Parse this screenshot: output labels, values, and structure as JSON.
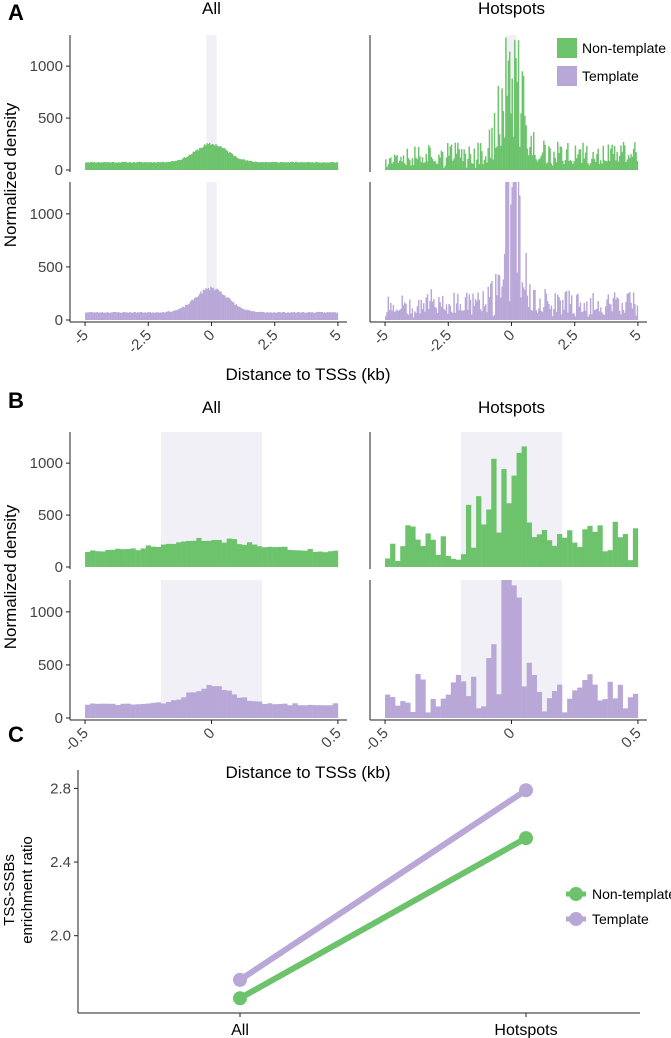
{
  "colors": {
    "non_template": "#6cc36c",
    "template": "#b9a7d8",
    "shade": "#e6e6f0",
    "axis": "#222222"
  },
  "chart_data": [
    {
      "panel_label": "A",
      "type": "histogram",
      "xlabel": "Distance to TSSs (kb)",
      "ylabel": "Normalized density",
      "facets": [
        "All",
        "Hotspots"
      ],
      "xticks": [
        "-5",
        "-2.5",
        "0",
        "2.5",
        "5"
      ],
      "yticks": [
        "0",
        "500",
        "1000"
      ],
      "xlim": [
        -5.2,
        5.2
      ],
      "ylim": [
        0,
        1300
      ],
      "highlight_region": [
        -0.2,
        0.2
      ],
      "legend": {
        "position": "top-right",
        "entries": [
          "Non-template",
          "Template"
        ]
      },
      "series": [
        {
          "name": "Non-template",
          "facet": "All",
          "baseline": 75,
          "peak": 250,
          "peak_width": 0.9,
          "noise": 0.08,
          "seed": 11
        },
        {
          "name": "Template",
          "facet": "All",
          "baseline": 72,
          "peak": 300,
          "peak_width": 0.9,
          "noise": 0.08,
          "seed": 23
        },
        {
          "name": "Non-template",
          "facet": "Hotspots",
          "baseline": 160,
          "peak": 880,
          "peak_width": 0.6,
          "noise": 0.9,
          "seed": 37
        },
        {
          "name": "Template",
          "facet": "Hotspots",
          "baseline": 170,
          "peak": 1250,
          "peak_width": 0.45,
          "noise": 0.9,
          "seed": 53
        }
      ]
    },
    {
      "panel_label": "B",
      "type": "histogram",
      "xlabel": "Distance to TSSs (kb)",
      "ylabel": "Normalized density",
      "facets": [
        "All",
        "Hotspots"
      ],
      "xticks": [
        "-0.5",
        "0",
        "0.5"
      ],
      "yticks": [
        "0",
        "500",
        "1000"
      ],
      "xlim": [
        -0.52,
        0.52
      ],
      "ylim": [
        0,
        1300
      ],
      "highlight_region": [
        -0.2,
        0.2
      ],
      "series": [
        {
          "name": "Non-template",
          "facet": "All",
          "baseline": 150,
          "peak": 260,
          "peak_width": 0.25,
          "noise": 0.12,
          "seed": 71
        },
        {
          "name": "Template",
          "facet": "All",
          "baseline": 130,
          "peak": 300,
          "peak_width": 0.12,
          "noise": 0.1,
          "seed": 83
        },
        {
          "name": "Non-template",
          "facet": "Hotspots",
          "baseline": 300,
          "peak": 880,
          "peak_width": 0.15,
          "noise": 0.6,
          "seed": 97
        },
        {
          "name": "Template",
          "facet": "Hotspots",
          "baseline": 280,
          "peak": 1250,
          "peak_width": 0.06,
          "noise": 0.6,
          "seed": 113
        }
      ]
    },
    {
      "panel_label": "C",
      "type": "line",
      "ylabel": "TSS-SSBs\nenrichment ratio",
      "categories": [
        "All",
        "Hotspots"
      ],
      "yticks": [
        "2.0",
        "2.4",
        "2.8"
      ],
      "ylim": [
        1.58,
        2.9
      ],
      "legend": {
        "position": "bottom-right",
        "entries": [
          "Non-template",
          "Template"
        ]
      },
      "series": [
        {
          "name": "Non-template",
          "values": [
            1.66,
            2.53
          ]
        },
        {
          "name": "Template",
          "values": [
            1.76,
            2.79
          ]
        }
      ]
    }
  ]
}
